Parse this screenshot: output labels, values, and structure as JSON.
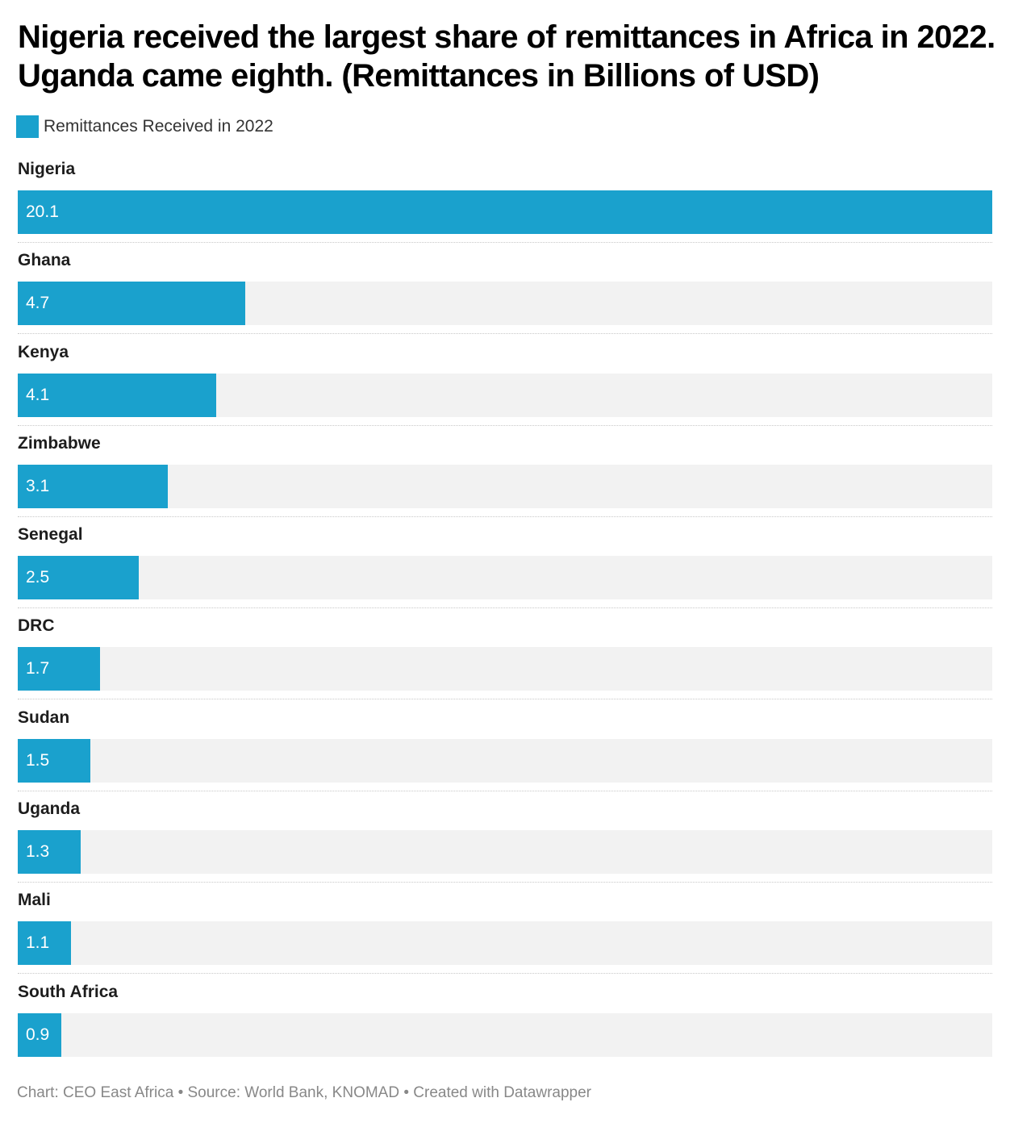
{
  "title": "Nigeria received the largest share of remittances in Africa in 2022. Uganda came eighth. (Remittances in Billions of USD)",
  "legend": {
    "label": "Remittances Received in 2022",
    "color": "#1aa1cd"
  },
  "footer": "Chart: CEO East Africa • Source: World Bank, KNOMAD • Created with Datawrapper",
  "colors": {
    "bar": "#1aa1cd",
    "background_track": "#f2f2f2"
  },
  "chart_data": {
    "type": "bar",
    "orientation": "horizontal",
    "title": "Nigeria received the largest share of remittances in Africa in 2022. Uganda came eighth. (Remittances in Billions of USD)",
    "xlabel": "",
    "ylabel": "",
    "xlim": [
      0,
      20.1
    ],
    "grid": false,
    "legend_position": "top-left",
    "categories": [
      "Nigeria",
      "Ghana",
      "Kenya",
      "Zimbabwe",
      "Senegal",
      "DRC",
      "Sudan",
      "Uganda",
      "Mali",
      "South Africa"
    ],
    "series": [
      {
        "name": "Remittances Received in 2022",
        "values": [
          20.1,
          4.7,
          4.1,
          3.1,
          2.5,
          1.7,
          1.5,
          1.3,
          1.1,
          0.9
        ]
      }
    ],
    "data_labels": [
      "20.1",
      "4.7",
      "4.1",
      "3.1",
      "2.5",
      "1.7",
      "1.5",
      "1.3",
      "1.1",
      "0.9"
    ]
  }
}
